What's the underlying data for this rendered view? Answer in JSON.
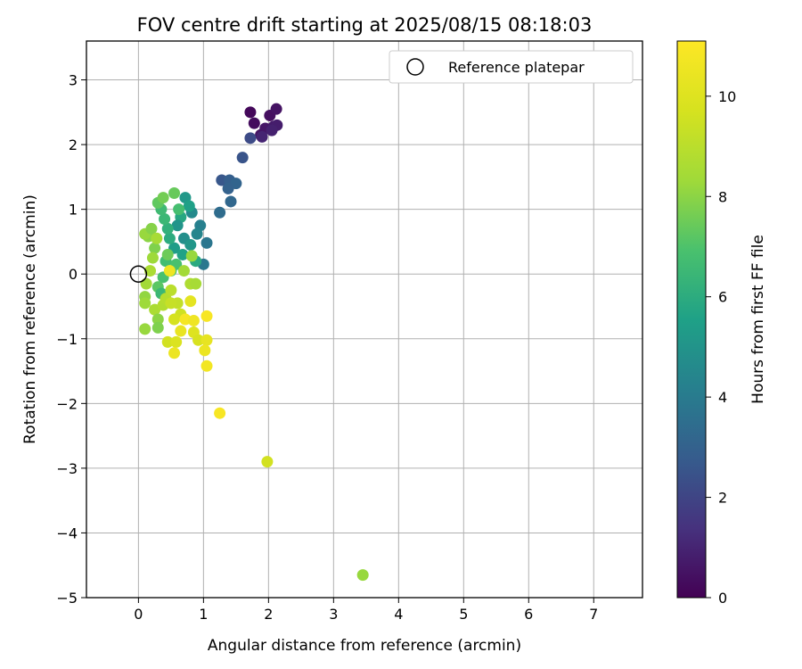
{
  "chart_data": {
    "type": "scatter",
    "title": "FOV centre drift starting at 2025/08/15 08:18:03",
    "xlabel": "Angular distance from reference (arcmin)",
    "ylabel": "Rotation from reference (arcmin)",
    "xlim": [
      -0.8,
      7.75
    ],
    "ylim": [
      -5.0,
      3.6
    ],
    "xticks": [
      "0",
      "1",
      "2",
      "3",
      "4",
      "5",
      "6",
      "7"
    ],
    "yticks": [
      "−5",
      "−4",
      "−3",
      "−2",
      "−1",
      "0",
      "1",
      "2",
      "3"
    ],
    "grid": true,
    "legend": {
      "position": "upper-right",
      "entries": [
        "Reference platepar"
      ]
    },
    "reference_point": {
      "x": 0,
      "y": 0
    },
    "colorbar": {
      "label": "Hours from first FF file",
      "range": [
        0,
        11.1
      ],
      "ticks": [
        "0",
        "2",
        "4",
        "6",
        "8",
        "10"
      ],
      "colormap": "viridis"
    },
    "series": [
      {
        "marker": "filled-circle",
        "points": [
          {
            "x": 1.72,
            "y": 2.5,
            "h": 0.2
          },
          {
            "x": 1.78,
            "y": 2.33,
            "h": 0.3
          },
          {
            "x": 1.88,
            "y": 2.15,
            "h": 0.5
          },
          {
            "x": 1.95,
            "y": 2.25,
            "h": 0.6
          },
          {
            "x": 2.02,
            "y": 2.45,
            "h": 0.4
          },
          {
            "x": 2.08,
            "y": 2.28,
            "h": 0.7
          },
          {
            "x": 2.12,
            "y": 2.55,
            "h": 0.5
          },
          {
            "x": 2.13,
            "y": 2.3,
            "h": 0.8
          },
          {
            "x": 2.05,
            "y": 2.22,
            "h": 0.9
          },
          {
            "x": 1.9,
            "y": 2.12,
            "h": 1.0
          },
          {
            "x": 1.72,
            "y": 2.1,
            "h": 2.2
          },
          {
            "x": 1.6,
            "y": 1.8,
            "h": 2.5
          },
          {
            "x": 1.28,
            "y": 1.45,
            "h": 2.6
          },
          {
            "x": 1.4,
            "y": 1.45,
            "h": 2.9
          },
          {
            "x": 1.5,
            "y": 1.4,
            "h": 3.1
          },
          {
            "x": 1.38,
            "y": 1.32,
            "h": 3.0
          },
          {
            "x": 1.42,
            "y": 1.12,
            "h": 3.2
          },
          {
            "x": 1.25,
            "y": 0.95,
            "h": 3.4
          },
          {
            "x": 1.05,
            "y": 0.48,
            "h": 3.8
          },
          {
            "x": 1.0,
            "y": 0.15,
            "h": 3.9
          },
          {
            "x": 0.95,
            "y": 0.75,
            "h": 4.2
          },
          {
            "x": 0.9,
            "y": 0.62,
            "h": 4.4
          },
          {
            "x": 0.82,
            "y": 0.95,
            "h": 4.6
          },
          {
            "x": 0.72,
            "y": 1.18,
            "h": 5.2
          },
          {
            "x": 0.78,
            "y": 1.05,
            "h": 5.5
          },
          {
            "x": 0.65,
            "y": 0.88,
            "h": 5.8
          },
          {
            "x": 0.6,
            "y": 0.75,
            "h": 5.0
          },
          {
            "x": 0.7,
            "y": 0.55,
            "h": 4.8
          },
          {
            "x": 0.8,
            "y": 0.45,
            "h": 5.1
          },
          {
            "x": 0.55,
            "y": 0.4,
            "h": 5.4
          },
          {
            "x": 0.48,
            "y": 0.55,
            "h": 6.0
          },
          {
            "x": 0.45,
            "y": 0.7,
            "h": 6.2
          },
          {
            "x": 0.4,
            "y": 0.85,
            "h": 6.5
          },
          {
            "x": 0.35,
            "y": 1.0,
            "h": 6.6
          },
          {
            "x": 0.3,
            "y": 1.1,
            "h": 7.3
          },
          {
            "x": 0.38,
            "y": 1.18,
            "h": 7.6
          },
          {
            "x": 0.55,
            "y": 1.25,
            "h": 7.4
          },
          {
            "x": 0.62,
            "y": 1.0,
            "h": 6.8
          },
          {
            "x": 0.68,
            "y": 0.3,
            "h": 5.6
          },
          {
            "x": 0.88,
            "y": 0.2,
            "h": 5.9
          },
          {
            "x": 0.58,
            "y": 0.15,
            "h": 6.9
          },
          {
            "x": 0.42,
            "y": 0.2,
            "h": 6.7
          },
          {
            "x": 0.5,
            "y": 0.05,
            "h": 7.0
          },
          {
            "x": 0.38,
            "y": -0.05,
            "h": 6.9
          },
          {
            "x": 0.3,
            "y": -0.2,
            "h": 7.2
          },
          {
            "x": 0.35,
            "y": -0.3,
            "h": 6.5
          },
          {
            "x": 0.45,
            "y": 0.3,
            "h": 7.5
          },
          {
            "x": 0.25,
            "y": 0.4,
            "h": 7.8
          },
          {
            "x": 0.15,
            "y": 0.58,
            "h": 8.0
          },
          {
            "x": 0.1,
            "y": 0.62,
            "h": 8.2
          },
          {
            "x": 0.2,
            "y": 0.7,
            "h": 7.9
          },
          {
            "x": 0.28,
            "y": 0.55,
            "h": 8.5
          },
          {
            "x": 0.22,
            "y": 0.25,
            "h": 8.3
          },
          {
            "x": 0.18,
            "y": 0.05,
            "h": 8.6
          },
          {
            "x": 0.12,
            "y": -0.15,
            "h": 8.4
          },
          {
            "x": 0.1,
            "y": -0.35,
            "h": 8.1
          },
          {
            "x": 0.1,
            "y": -0.45,
            "h": 8.3
          },
          {
            "x": 0.25,
            "y": -0.55,
            "h": 8.6
          },
          {
            "x": 0.38,
            "y": -0.48,
            "h": 8.8
          },
          {
            "x": 0.3,
            "y": -0.7,
            "h": 8.0
          },
          {
            "x": 0.3,
            "y": -0.83,
            "h": 7.8
          },
          {
            "x": 0.1,
            "y": -0.85,
            "h": 8.2
          },
          {
            "x": 0.42,
            "y": -0.38,
            "h": 8.9
          },
          {
            "x": 0.5,
            "y": -0.25,
            "h": 9.0
          },
          {
            "x": 0.6,
            "y": -0.45,
            "h": 9.2
          },
          {
            "x": 0.65,
            "y": -0.62,
            "h": 9.5
          },
          {
            "x": 0.55,
            "y": -0.7,
            "h": 9.7
          },
          {
            "x": 0.45,
            "y": -1.05,
            "h": 9.6
          },
          {
            "x": 0.58,
            "y": -1.05,
            "h": 9.9
          },
          {
            "x": 0.55,
            "y": -1.22,
            "h": 10.5
          },
          {
            "x": 0.72,
            "y": -0.7,
            "h": 10.8
          },
          {
            "x": 0.85,
            "y": -0.72,
            "h": 10.6
          },
          {
            "x": 0.8,
            "y": -0.42,
            "h": 10.2
          },
          {
            "x": 0.65,
            "y": -0.88,
            "h": 10.4
          },
          {
            "x": 0.85,
            "y": -0.9,
            "h": 10.0
          },
          {
            "x": 0.92,
            "y": -1.02,
            "h": 9.8
          },
          {
            "x": 1.05,
            "y": -1.02,
            "h": 10.3
          },
          {
            "x": 1.05,
            "y": -0.65,
            "h": 10.9
          },
          {
            "x": 1.02,
            "y": -1.18,
            "h": 10.5
          },
          {
            "x": 1.05,
            "y": -1.42,
            "h": 10.7
          },
          {
            "x": 0.8,
            "y": -0.15,
            "h": 8.7
          },
          {
            "x": 0.7,
            "y": 0.05,
            "h": 8.4
          },
          {
            "x": 0.88,
            "y": -0.15,
            "h": 8.5
          },
          {
            "x": 0.82,
            "y": 0.28,
            "h": 8.2
          },
          {
            "x": 0.48,
            "y": 0.05,
            "h": 10.6
          },
          {
            "x": 0.5,
            "y": -0.45,
            "h": 9.3
          },
          {
            "x": 1.25,
            "y": -2.15,
            "h": 10.9
          },
          {
            "x": 1.98,
            "y": -2.9,
            "h": 9.6
          },
          {
            "x": 3.45,
            "y": -4.65,
            "h": 8.2
          }
        ]
      }
    ]
  }
}
